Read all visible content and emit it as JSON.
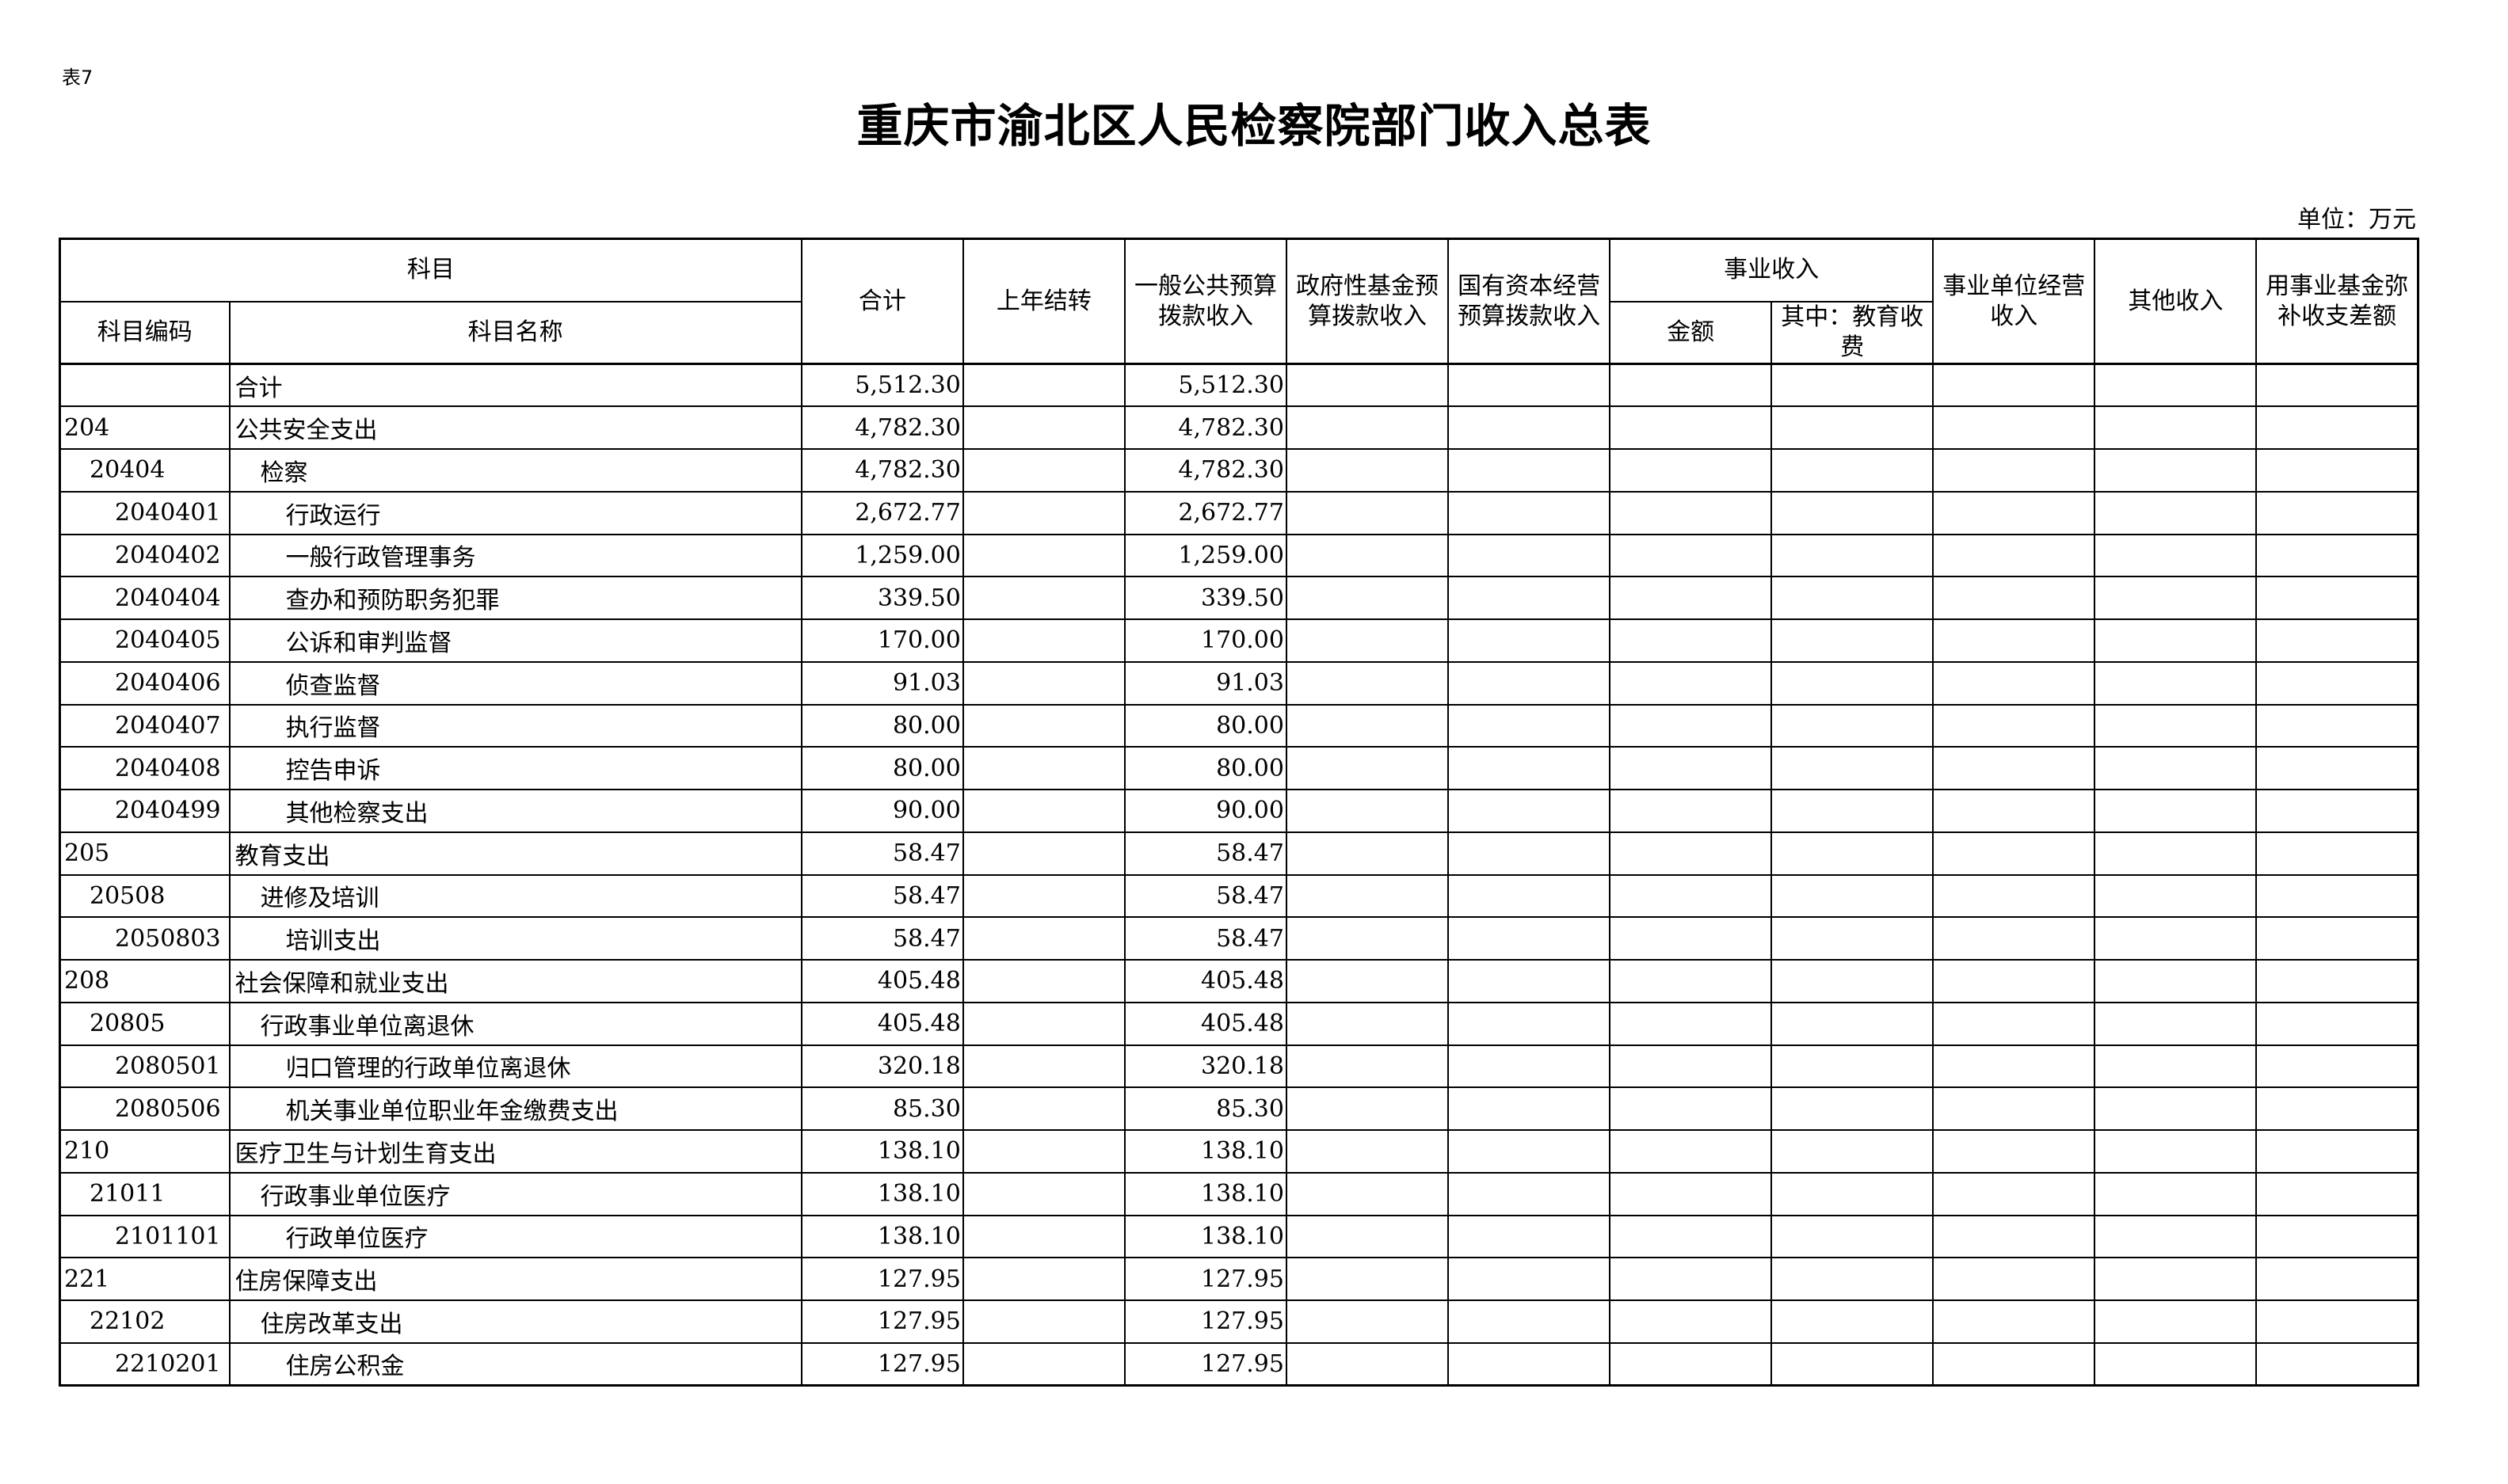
{
  "doc": {
    "table_no": "表7",
    "title": "重庆市渝北区人民检察院部门收入总表",
    "unit": "单位：万元"
  },
  "header": {
    "subject": "科目",
    "subject_code": "科目编码",
    "subject_name": "科目名称",
    "total": "合计",
    "carryover": "上年结转",
    "general_budget": "一般公共预算拨款收入",
    "gov_fund": "政府性基金预算拨款收入",
    "state_capital": "国有资本经营预算拨款收入",
    "business_income": "事业收入",
    "amount": "金额",
    "edu_fee": "其中：教育收费",
    "business_operation": "事业单位经营收入",
    "other_income": "其他收入",
    "fund_offset": "用事业基金弥补收支差额"
  },
  "rows": [
    {
      "level": 0,
      "code": "",
      "name": "合计",
      "total": "5,512.30",
      "carryover": "",
      "general": "5,512.30"
    },
    {
      "level": 0,
      "code": "204",
      "name": "公共安全支出",
      "total": "4,782.30",
      "carryover": "",
      "general": "4,782.30"
    },
    {
      "level": 1,
      "code": "20404",
      "name": "检察",
      "total": "4,782.30",
      "carryover": "",
      "general": "4,782.30"
    },
    {
      "level": 2,
      "code": "2040401",
      "name": "行政运行",
      "total": "2,672.77",
      "carryover": "",
      "general": "2,672.77"
    },
    {
      "level": 2,
      "code": "2040402",
      "name": "一般行政管理事务",
      "total": "1,259.00",
      "carryover": "",
      "general": "1,259.00"
    },
    {
      "level": 2,
      "code": "2040404",
      "name": "查办和预防职务犯罪",
      "total": "339.50",
      "carryover": "",
      "general": "339.50"
    },
    {
      "level": 2,
      "code": "2040405",
      "name": "公诉和审判监督",
      "total": "170.00",
      "carryover": "",
      "general": "170.00"
    },
    {
      "level": 2,
      "code": "2040406",
      "name": "侦查监督",
      "total": "91.03",
      "carryover": "",
      "general": "91.03"
    },
    {
      "level": 2,
      "code": "2040407",
      "name": "执行监督",
      "total": "80.00",
      "carryover": "",
      "general": "80.00"
    },
    {
      "level": 2,
      "code": "2040408",
      "name": "控告申诉",
      "total": "80.00",
      "carryover": "",
      "general": "80.00"
    },
    {
      "level": 2,
      "code": "2040499",
      "name": "其他检察支出",
      "total": "90.00",
      "carryover": "",
      "general": "90.00"
    },
    {
      "level": 0,
      "code": "205",
      "name": "教育支出",
      "total": "58.47",
      "carryover": "",
      "general": "58.47"
    },
    {
      "level": 1,
      "code": "20508",
      "name": "进修及培训",
      "total": "58.47",
      "carryover": "",
      "general": "58.47"
    },
    {
      "level": 2,
      "code": "2050803",
      "name": "培训支出",
      "total": "58.47",
      "carryover": "",
      "general": "58.47"
    },
    {
      "level": 0,
      "code": "208",
      "name": "社会保障和就业支出",
      "total": "405.48",
      "carryover": "",
      "general": "405.48"
    },
    {
      "level": 1,
      "code": "20805",
      "name": "行政事业单位离退休",
      "total": "405.48",
      "carryover": "",
      "general": "405.48"
    },
    {
      "level": 2,
      "code": "2080501",
      "name": "归口管理的行政单位离退休",
      "total": "320.18",
      "carryover": "",
      "general": "320.18"
    },
    {
      "level": 2,
      "code": "2080506",
      "name": "机关事业单位职业年金缴费支出",
      "total": "85.30",
      "carryover": "",
      "general": "85.30"
    },
    {
      "level": 0,
      "code": "210",
      "name": "医疗卫生与计划生育支出",
      "total": "138.10",
      "carryover": "",
      "general": "138.10"
    },
    {
      "level": 1,
      "code": "21011",
      "name": "行政事业单位医疗",
      "total": "138.10",
      "carryover": "",
      "general": "138.10"
    },
    {
      "level": 2,
      "code": "2101101",
      "name": "行政单位医疗",
      "total": "138.10",
      "carryover": "",
      "general": "138.10"
    },
    {
      "level": 0,
      "code": "221",
      "name": "住房保障支出",
      "total": "127.95",
      "carryover": "",
      "general": "127.95"
    },
    {
      "level": 1,
      "code": "22102",
      "name": "住房改革支出",
      "total": "127.95",
      "carryover": "",
      "general": "127.95"
    },
    {
      "level": 2,
      "code": "2210201",
      "name": "住房公积金",
      "total": "127.95",
      "carryover": "",
      "general": "127.95"
    }
  ]
}
